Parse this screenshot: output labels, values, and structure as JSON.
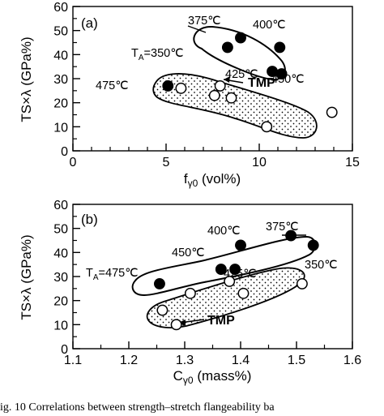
{
  "chart_data": [
    {
      "type": "scatter",
      "panel_label": "(a)",
      "xlabel_main": "f",
      "xlabel_sub": "γ0",
      "xlabel_unit": " (vol%)",
      "ylabel": "TS×λ (GPa%)",
      "xlim": [
        0,
        15
      ],
      "ylim": [
        0,
        60
      ],
      "x_ticks": [
        0,
        5,
        10,
        15
      ],
      "y_ticks": [
        0,
        10,
        20,
        30,
        40,
        50,
        60
      ],
      "x_tick_labels": [
        "0",
        "5",
        "10",
        "15"
      ],
      "y_tick_labels": [
        "0",
        "10",
        "20",
        "30",
        "40",
        "50",
        "60"
      ],
      "series": [
        {
          "marker": "filled",
          "color": "#000000",
          "points": [
            {
              "x": 5.1,
              "y": 27
            },
            {
              "x": 8.3,
              "y": 43
            },
            {
              "x": 9.0,
              "y": 47
            },
            {
              "x": 10.7,
              "y": 33
            },
            {
              "x": 11.1,
              "y": 43
            },
            {
              "x": 11.2,
              "y": 32
            }
          ]
        },
        {
          "name": "TMP",
          "marker": "open",
          "color": "#000000",
          "points": [
            {
              "x": 5.8,
              "y": 26
            },
            {
              "x": 7.6,
              "y": 23
            },
            {
              "x": 7.9,
              "y": 27
            },
            {
              "x": 8.5,
              "y": 22
            },
            {
              "x": 10.4,
              "y": 10
            },
            {
              "x": 13.9,
              "y": 16
            }
          ]
        }
      ],
      "annotations": [
        {
          "text": "375℃"
        },
        {
          "text": "400℃"
        },
        {
          "text": "TA=350℃",
          "main": "T",
          "sub": "A",
          "rest": "=350℃"
        },
        {
          "text": "425℃"
        },
        {
          "text": "450℃"
        },
        {
          "text": "475℃"
        },
        {
          "text": "TMP"
        }
      ]
    },
    {
      "type": "scatter",
      "panel_label": "(b)",
      "xlabel_main": "C",
      "xlabel_sub": "γ0",
      "xlabel_unit": " (mass%)",
      "ylabel": "TS×λ (GPa%)",
      "xlim": [
        1.1,
        1.6
      ],
      "ylim": [
        0,
        60
      ],
      "x_ticks": [
        1.1,
        1.2,
        1.3,
        1.4,
        1.5,
        1.6
      ],
      "y_ticks": [
        0,
        10,
        20,
        30,
        40,
        50,
        60
      ],
      "x_tick_labels": [
        "1.1",
        "1.2",
        "1.3",
        "1.4",
        "1.5",
        "1.6"
      ],
      "y_tick_labels": [
        "0",
        "10",
        "20",
        "30",
        "40",
        "50",
        "60"
      ],
      "series": [
        {
          "marker": "filled",
          "color": "#000000",
          "points": [
            {
              "x": 1.255,
              "y": 27
            },
            {
              "x": 1.365,
              "y": 33
            },
            {
              "x": 1.39,
              "y": 33
            },
            {
              "x": 1.4,
              "y": 43
            },
            {
              "x": 1.49,
              "y": 47
            },
            {
              "x": 1.53,
              "y": 43
            }
          ]
        },
        {
          "name": "TMP",
          "marker": "open",
          "color": "#000000",
          "points": [
            {
              "x": 1.26,
              "y": 16
            },
            {
              "x": 1.285,
              "y": 10
            },
            {
              "x": 1.31,
              "y": 23
            },
            {
              "x": 1.38,
              "y": 28
            },
            {
              "x": 1.405,
              "y": 23
            },
            {
              "x": 1.51,
              "y": 27
            }
          ]
        }
      ],
      "annotations": [
        {
          "text": "400℃"
        },
        {
          "text": "375℃"
        },
        {
          "text": "450℃"
        },
        {
          "text": "TA=475℃",
          "main": "T",
          "sub": "A",
          "rest": "=475℃"
        },
        {
          "text": "425℃"
        },
        {
          "text": "350℃"
        },
        {
          "text": "TMP"
        }
      ]
    }
  ],
  "caption": "ig. 10   Correlations between strength–stretch flangeability ba"
}
